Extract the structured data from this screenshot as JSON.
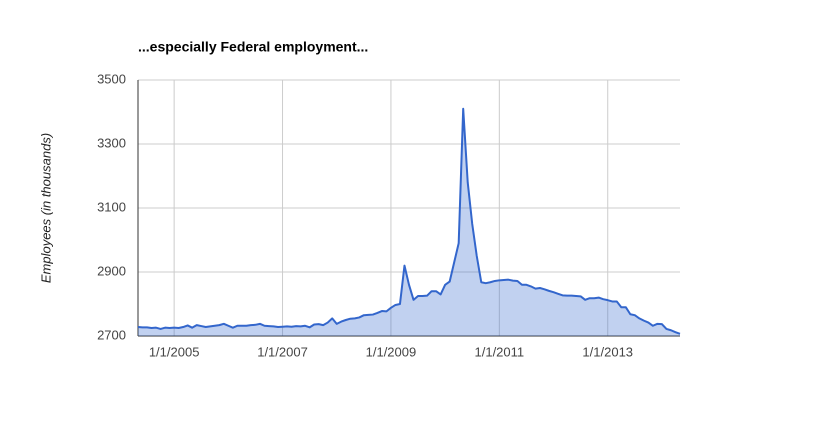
{
  "chart_data": {
    "type": "area",
    "title": "...especially Federal employment...",
    "ylabel": "Employees (in thousands)",
    "color": "#3366cc",
    "grid": true,
    "x": [
      "2004-05",
      "2004-06",
      "2004-07",
      "2004-08",
      "2004-09",
      "2004-10",
      "2004-11",
      "2004-12",
      "2005-01",
      "2005-02",
      "2005-03",
      "2005-04",
      "2005-05",
      "2005-06",
      "2005-07",
      "2005-08",
      "2005-09",
      "2005-10",
      "2005-11",
      "2005-12",
      "2006-01",
      "2006-02",
      "2006-03",
      "2006-04",
      "2006-05",
      "2006-06",
      "2006-07",
      "2006-08",
      "2006-09",
      "2006-10",
      "2006-11",
      "2006-12",
      "2007-01",
      "2007-02",
      "2007-03",
      "2007-04",
      "2007-05",
      "2007-06",
      "2007-07",
      "2007-08",
      "2007-09",
      "2007-10",
      "2007-11",
      "2007-12",
      "2008-01",
      "2008-02",
      "2008-03",
      "2008-04",
      "2008-05",
      "2008-06",
      "2008-07",
      "2008-08",
      "2008-09",
      "2008-10",
      "2008-11",
      "2008-12",
      "2009-01",
      "2009-02",
      "2009-03",
      "2009-04",
      "2009-05",
      "2009-06",
      "2009-07",
      "2009-08",
      "2009-09",
      "2009-10",
      "2009-11",
      "2009-12",
      "2010-01",
      "2010-02",
      "2010-03",
      "2010-04",
      "2010-05",
      "2010-06",
      "2010-07",
      "2010-08",
      "2010-09",
      "2010-10",
      "2010-11",
      "2010-12",
      "2011-01",
      "2011-02",
      "2011-03",
      "2011-04",
      "2011-05",
      "2011-06",
      "2011-07",
      "2011-08",
      "2011-09",
      "2011-10",
      "2011-11",
      "2011-12",
      "2012-01",
      "2012-02",
      "2012-03",
      "2012-04",
      "2012-05",
      "2012-06",
      "2012-07",
      "2012-08",
      "2012-09",
      "2012-10",
      "2012-11",
      "2012-12",
      "2013-01",
      "2013-02",
      "2013-03",
      "2013-04",
      "2013-05",
      "2013-06",
      "2013-07",
      "2013-08",
      "2013-09",
      "2013-10",
      "2013-11",
      "2013-12",
      "2014-01",
      "2014-02",
      "2014-03",
      "2014-04",
      "2014-05"
    ],
    "values": [
      2728,
      2727,
      2727,
      2725,
      2726,
      2722,
      2726,
      2725,
      2726,
      2725,
      2728,
      2733,
      2726,
      2734,
      2731,
      2728,
      2730,
      2732,
      2734,
      2738,
      2732,
      2726,
      2732,
      2732,
      2732,
      2734,
      2735,
      2738,
      2732,
      2731,
      2730,
      2728,
      2729,
      2730,
      2729,
      2731,
      2730,
      2732,
      2727,
      2736,
      2737,
      2734,
      2742,
      2755,
      2738,
      2745,
      2750,
      2754,
      2755,
      2758,
      2765,
      2766,
      2767,
      2772,
      2778,
      2777,
      2788,
      2797,
      2800,
      2920,
      2860,
      2813,
      2825,
      2825,
      2826,
      2840,
      2840,
      2830,
      2860,
      2870,
      2930,
      2990,
      3410,
      3180,
      3050,
      2950,
      2868,
      2865,
      2868,
      2872,
      2874,
      2875,
      2876,
      2873,
      2872,
      2860,
      2860,
      2855,
      2848,
      2850,
      2846,
      2841,
      2837,
      2832,
      2827,
      2826,
      2826,
      2825,
      2824,
      2813,
      2818,
      2818,
      2820,
      2815,
      2812,
      2808,
      2808,
      2790,
      2790,
      2768,
      2765,
      2755,
      2748,
      2742,
      2732,
      2738,
      2737,
      2722,
      2718,
      2712,
      2707
    ],
    "xlim": [
      "2004-05",
      "2014-05"
    ],
    "xticks": [
      {
        "value": "2005-01",
        "label": "1/1/2005"
      },
      {
        "value": "2007-01",
        "label": "1/1/2007"
      },
      {
        "value": "2009-01",
        "label": "1/1/2009"
      },
      {
        "value": "2011-01",
        "label": "1/1/2011"
      },
      {
        "value": "2013-01",
        "label": "1/1/2013"
      }
    ],
    "ylim": [
      2700,
      3500
    ],
    "yticks": [
      2700,
      2900,
      3100,
      3300,
      3500
    ]
  }
}
